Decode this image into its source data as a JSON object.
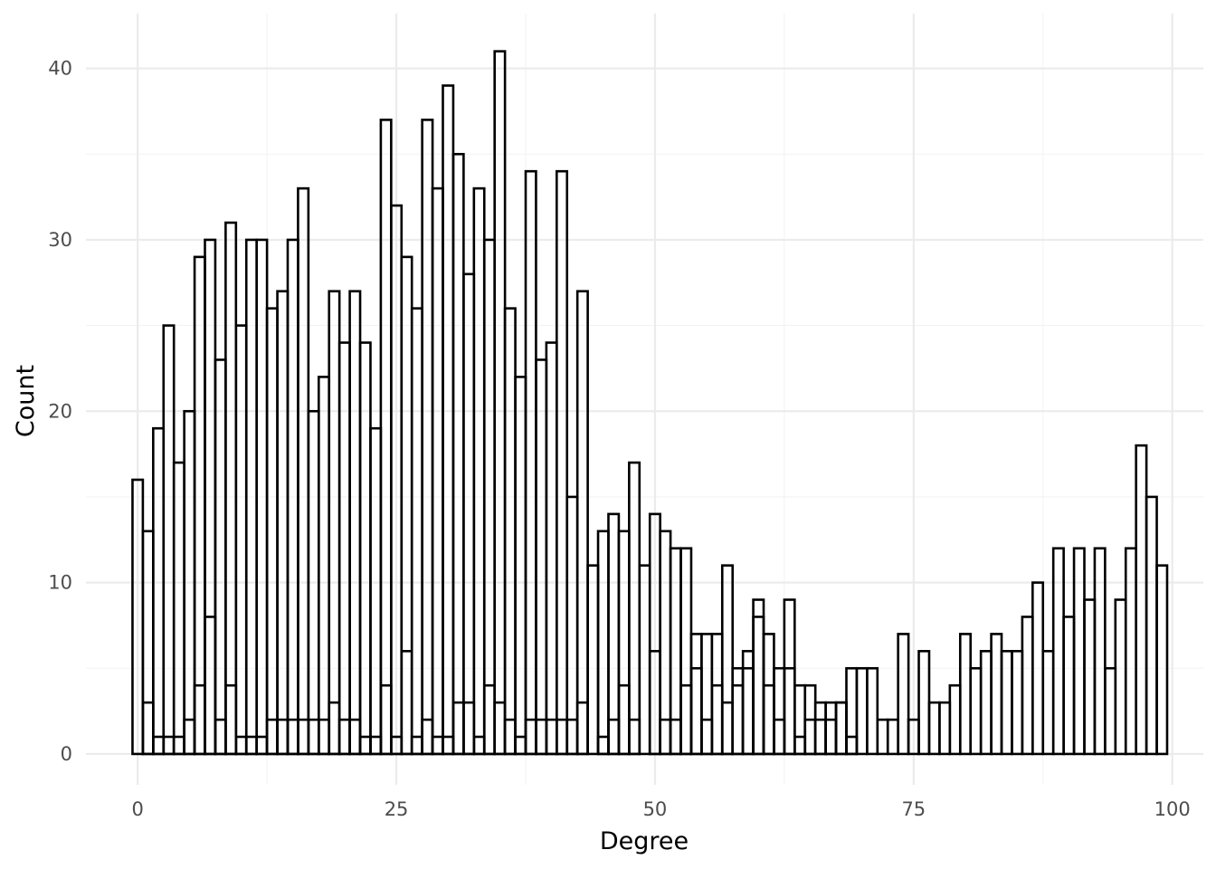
{
  "chart_data": {
    "type": "bar",
    "subtype": "histogram-overlay",
    "title": "",
    "xlabel": "Degree",
    "ylabel": "Count",
    "xlim": [
      -5,
      103
    ],
    "ylim": [
      -1.8,
      43.2
    ],
    "x_ticks": [
      0,
      25,
      50,
      75,
      100
    ],
    "y_ticks": [
      0,
      10,
      20,
      30,
      40
    ],
    "grid": true,
    "bin_width": 1,
    "x": [
      0,
      1,
      2,
      3,
      4,
      5,
      6,
      7,
      8,
      9,
      10,
      11,
      12,
      13,
      14,
      15,
      16,
      17,
      18,
      19,
      20,
      21,
      22,
      23,
      24,
      25,
      26,
      27,
      28,
      29,
      30,
      31,
      32,
      33,
      34,
      35,
      36,
      37,
      38,
      39,
      40,
      41,
      42,
      43,
      44,
      45,
      46,
      47,
      48,
      49,
      50,
      51,
      52,
      53,
      54,
      55,
      56,
      57,
      58,
      59,
      60,
      61,
      62,
      63,
      64,
      65,
      66,
      67,
      68,
      69,
      70,
      71,
      72,
      73,
      74,
      75,
      76,
      77,
      78,
      79,
      80,
      81,
      82,
      83,
      84,
      85,
      86,
      87,
      88,
      89,
      90,
      91,
      92,
      93,
      94,
      95,
      96,
      97,
      98,
      99
    ],
    "series": [
      {
        "values": [
          16,
          13,
          19,
          25,
          17,
          20,
          29,
          30,
          23,
          31,
          25,
          30,
          30,
          26,
          27,
          30,
          33,
          20,
          22,
          27,
          24,
          27,
          24,
          19,
          37,
          32,
          29,
          26,
          37,
          33,
          39,
          35,
          28,
          33,
          30,
          41,
          26,
          22,
          34,
          23,
          24,
          34,
          15,
          27,
          11,
          13,
          14,
          13,
          17,
          11,
          14,
          13,
          12,
          12,
          7,
          7,
          7,
          11,
          5,
          6,
          9,
          7,
          5,
          9,
          4,
          4,
          3,
          3,
          3,
          5,
          5,
          5,
          2,
          2,
          7,
          2,
          6,
          3,
          3,
          4,
          7,
          5,
          6,
          7,
          6,
          6,
          8,
          10,
          6,
          12,
          8,
          12,
          9,
          12,
          5,
          9,
          12,
          18,
          15,
          11
        ]
      },
      {
        "values": [
          0,
          3,
          1,
          1,
          1,
          2,
          4,
          8,
          2,
          4,
          1,
          1,
          1,
          2,
          2,
          2,
          2,
          2,
          2,
          3,
          2,
          2,
          1,
          1,
          4,
          1,
          6,
          1,
          2,
          1,
          1,
          3,
          3,
          1,
          4,
          3,
          2,
          1,
          2,
          2,
          2,
          2,
          2,
          3,
          0,
          1,
          2,
          4,
          2,
          0,
          6,
          2,
          2,
          4,
          5,
          2,
          4,
          3,
          4,
          5,
          8,
          4,
          2,
          5,
          1,
          2,
          2,
          2,
          3,
          1,
          0,
          0,
          0,
          0,
          0,
          0,
          0,
          0,
          0,
          0,
          0,
          0,
          0,
          0,
          0,
          0,
          0,
          0,
          0,
          0,
          0,
          0,
          0,
          0,
          0,
          0,
          0,
          0,
          0,
          0
        ]
      }
    ]
  }
}
